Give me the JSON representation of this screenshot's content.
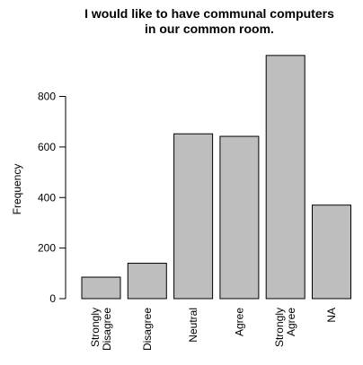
{
  "chart_data": {
    "type": "bar",
    "title": [
      "I would like to have communal computers",
      "in our common room."
    ],
    "xlabel": "",
    "ylabel": "Frequency",
    "categories": [
      [
        "Strongly",
        "Disagree"
      ],
      [
        "Disagree"
      ],
      [
        "Neutral"
      ],
      [
        "Agree"
      ],
      [
        "Strongly",
        "Agree"
      ],
      [
        "NA"
      ]
    ],
    "values": [
      85,
      140,
      652,
      642,
      962,
      370
    ],
    "ylim": [
      0,
      1000
    ],
    "yticks": [
      0,
      200,
      400,
      600,
      800
    ],
    "grid": false,
    "bar_color": "#bebebe",
    "bar_stroke": "#000000"
  }
}
